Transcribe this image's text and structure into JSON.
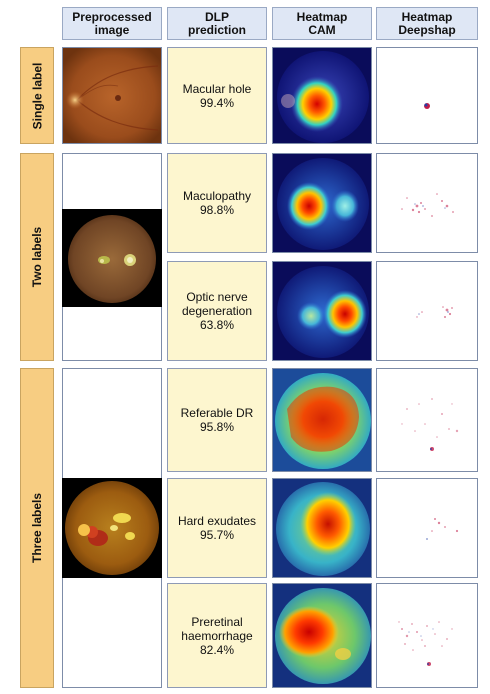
{
  "columns": {
    "preprocessed": "Preprocessed\nimage",
    "prediction": "DLP\nprediction",
    "cam": "Heatmap\nCAM",
    "deepshap": "Heatmap\nDeepshap"
  },
  "rows": {
    "single": "Single label",
    "two": "Two labels",
    "three": "Three labels"
  },
  "predictions": [
    {
      "label": "Macular hole",
      "value": "99.4%"
    },
    {
      "label": "Maculopathy",
      "value": "98.8%"
    },
    {
      "label": "Optic nerve\ndegeneration",
      "value": "63.8%"
    },
    {
      "label": "Referable DR",
      "value": "95.8%"
    },
    {
      "label": "Hard exudates",
      "value": "95.7%"
    },
    {
      "label": "Preretinal\nhaemorrhage",
      "value": "82.4%"
    }
  ]
}
